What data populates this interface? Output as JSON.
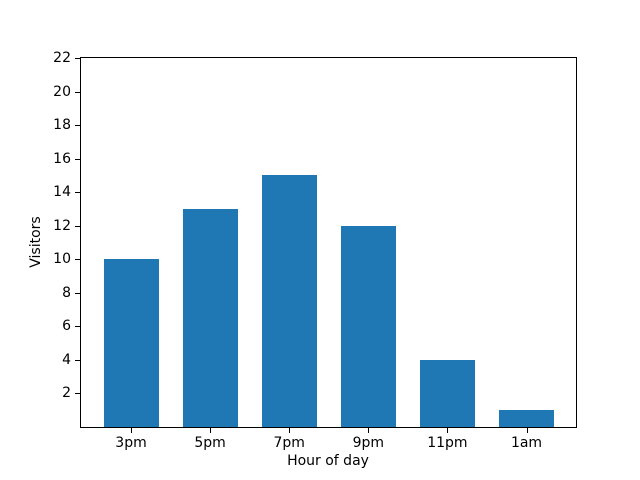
{
  "chart_data": {
    "type": "bar",
    "categories": [
      "3pm",
      "5pm",
      "7pm",
      "9pm",
      "11pm",
      "1am"
    ],
    "values": [
      10,
      13,
      15,
      12,
      4,
      1
    ],
    "xlabel": "Hour of day",
    "ylabel": "Visitors",
    "ylim": [
      0,
      22
    ],
    "yticks": [
      2,
      4,
      6,
      8,
      10,
      12,
      14,
      16,
      18,
      20,
      22
    ],
    "bar_color": "#1f77b4",
    "axis_color": "#000000",
    "background_color": "#ffffff",
    "grid": false,
    "legend_position": "none"
  }
}
